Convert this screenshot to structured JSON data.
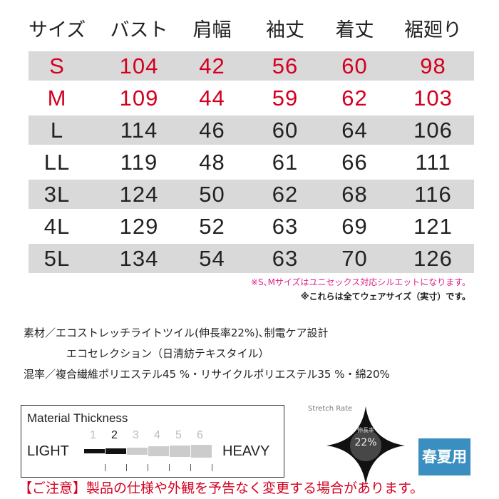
{
  "table": {
    "headers": [
      "サイズ",
      "バスト",
      "肩幅",
      "袖丈",
      "着丈",
      "裾廻り"
    ],
    "rows": [
      {
        "size": "S",
        "values": [
          "104",
          "42",
          "56",
          "60",
          "98"
        ],
        "highlight": true,
        "grey": true
      },
      {
        "size": "M",
        "values": [
          "109",
          "44",
          "59",
          "62",
          "103"
        ],
        "highlight": true,
        "grey": false
      },
      {
        "size": "L",
        "values": [
          "114",
          "46",
          "60",
          "64",
          "106"
        ],
        "highlight": false,
        "grey": true
      },
      {
        "size": "LL",
        "values": [
          "119",
          "48",
          "61",
          "66",
          "111"
        ],
        "highlight": false,
        "grey": false
      },
      {
        "size": "3L",
        "values": [
          "124",
          "50",
          "62",
          "68",
          "116"
        ],
        "highlight": false,
        "grey": true
      },
      {
        "size": "4L",
        "values": [
          "129",
          "52",
          "63",
          "69",
          "121"
        ],
        "highlight": false,
        "grey": false
      },
      {
        "size": "5L",
        "values": [
          "134",
          "54",
          "63",
          "70",
          "126"
        ],
        "highlight": false,
        "grey": true
      }
    ]
  },
  "notes": {
    "unisex": "※S､Mサイズはユニセックス対応シルエットになります。",
    "actual": "※これらは全てウェアサイズ（実寸）です。"
  },
  "material": {
    "line1": "素材／エコストレッチライトツイル(伸長率22%)､制電ケア設計",
    "line2": "エコセレクション（日清紡テキスタイル）",
    "line3": "混率／複合繊維ポリエステル45 %・リサイクルポリエステル35 %・綿20%"
  },
  "thickness": {
    "title": "Material Thickness",
    "light": "LIGHT",
    "heavy": "HEAVY",
    "scale": [
      "1",
      "2",
      "3",
      "4",
      "5",
      "6"
    ],
    "level": 2
  },
  "stretch": {
    "title": "Stretch Rate",
    "label": "伸長率",
    "value": "22%"
  },
  "season": {
    "label": "春夏用",
    "color": "#3a8fc0"
  },
  "caution": "【ご注意】製品の仕様や外観を予告なく変更する場合があります。",
  "colors": {
    "red": "#d4001f",
    "pink": "#e0218a",
    "grey_row": "#d9d9d9"
  }
}
